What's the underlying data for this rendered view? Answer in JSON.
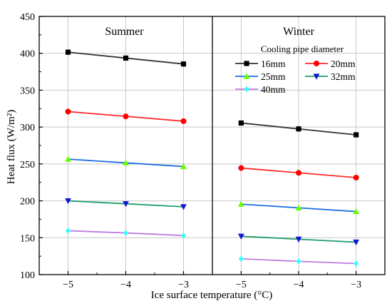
{
  "chart_data": {
    "type": "line",
    "xlabel": "Ice surface temperature (°C)",
    "ylabel": "Heat flux (W/m²)",
    "x_ticks": [
      "−5",
      "−4",
      "−3"
    ],
    "y_ticks": [
      "100",
      "150",
      "200",
      "250",
      "300",
      "350",
      "400",
      "450"
    ],
    "xlim": [
      -5.5,
      -2.5
    ],
    "ylim": [
      100,
      450
    ],
    "grid": true,
    "legend_title": "Cooling pipe diameter",
    "legend_position": "top-right (inside Winter panel)",
    "x": [
      -5,
      -4,
      -3
    ],
    "series_styles": [
      {
        "name": "16mm",
        "color": "#333333",
        "marker": "square"
      },
      {
        "name": "20mm",
        "color": "#ff2b2b",
        "marker": "circle"
      },
      {
        "name": "25mm",
        "color": "#1f6fe0",
        "marker": "triangle-up"
      },
      {
        "name": "32mm",
        "color": "#1e9e6a",
        "marker": "triangle-down"
      },
      {
        "name": "40mm",
        "color": "#c07be0",
        "marker": "diamond"
      }
    ],
    "marker_colors": {
      "16mm": "#000000",
      "20mm": "#ff0000",
      "25mm": "#66ff00",
      "32mm": "#1414d6",
      "40mm": "#33ffff"
    },
    "panels": [
      {
        "title": "Summer",
        "series": [
          {
            "name": "16mm",
            "values": [
              401.5,
              393.5,
              385.5
            ]
          },
          {
            "name": "20mm",
            "values": [
              321,
              314.5,
              308
            ]
          },
          {
            "name": "25mm",
            "values": [
              256.5,
              251.5,
              246.5
            ]
          },
          {
            "name": "32mm",
            "values": [
              200,
              196,
              192
            ]
          },
          {
            "name": "40mm",
            "values": [
              159.5,
              156.5,
              153
            ]
          }
        ]
      },
      {
        "title": "Winter",
        "series": [
          {
            "name": "16mm",
            "values": [
              305.5,
              297.5,
              289.5
            ]
          },
          {
            "name": "20mm",
            "values": [
              244.5,
              238,
              231.5
            ]
          },
          {
            "name": "25mm",
            "values": [
              195.5,
              190.5,
              185.5
            ]
          },
          {
            "name": "32mm",
            "values": [
              152,
              148,
              144
            ]
          },
          {
            "name": "40mm",
            "values": [
              121.5,
              118,
              115
            ]
          }
        ]
      }
    ]
  }
}
